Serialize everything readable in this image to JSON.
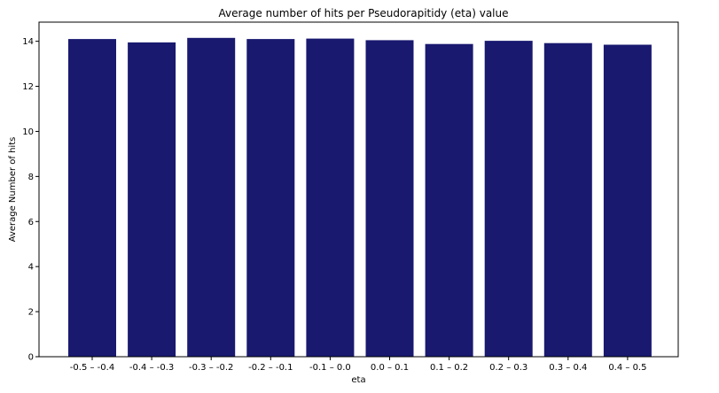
{
  "chart_data": {
    "type": "bar",
    "title": "Average number of hits per Pseudorapitidy (eta) value",
    "xlabel": "eta",
    "ylabel": "Average Number of hits",
    "categories": [
      "-0.5 – -0.4",
      "-0.4 – -0.3",
      "-0.3 – -0.2",
      "-0.2 – -0.1",
      "-0.1 – 0.0",
      "0.0 – 0.1",
      "0.1 – 0.2",
      "0.2 – 0.3",
      "0.3 – 0.4",
      "0.4 – 0.5"
    ],
    "values": [
      14.1,
      13.95,
      14.15,
      14.1,
      14.12,
      14.05,
      13.88,
      14.02,
      13.92,
      13.85
    ],
    "ylim": [
      0,
      14.85
    ],
    "yticks": [
      0,
      2,
      4,
      6,
      8,
      10,
      12,
      14
    ],
    "bar_color": "#191970",
    "grid": false,
    "legend": "none"
  }
}
